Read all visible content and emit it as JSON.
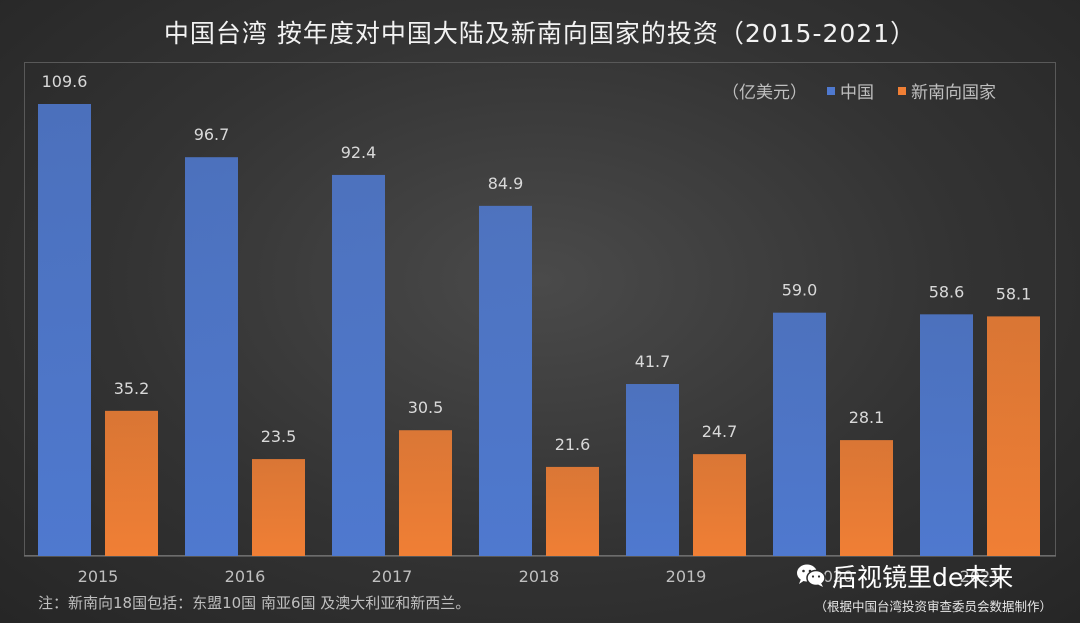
{
  "title": "中国台湾 按年度对中国大陆及新南向国家的投资（2015-2021）",
  "legend": {
    "unit": "（亿美元）",
    "china_label": "中国",
    "nsp_label": "新南向国家"
  },
  "colors": {
    "china": "#4f79cf",
    "nsp": "#f07f35",
    "label": "#d9d9d9",
    "axis": "#bfbfbf"
  },
  "note": "注：新南向18国包括：东盟10国 南亚6国 及澳大利亚和新西兰。",
  "source": "（根据中国台湾投资审查委员会数据制作）",
  "watermark": {
    "text": "后视镜里de未来",
    "icon": "wechat-icon"
  },
  "chart_data": {
    "type": "bar",
    "categories": [
      "2015",
      "2016",
      "2017",
      "2018",
      "2019",
      "2020",
      "2021"
    ],
    "series": [
      {
        "name": "中国",
        "values": [
          109.6,
          96.7,
          92.4,
          84.9,
          41.7,
          59.0,
          58.6
        ]
      },
      {
        "name": "新南向国家",
        "values": [
          35.2,
          23.5,
          30.5,
          21.6,
          24.7,
          28.1,
          58.1
        ]
      }
    ],
    "title": "中国台湾 按年度对中国大陆及新南向国家的投资（2015-2021）",
    "ylabel": "（亿美元）",
    "ylim": [
      0,
      109.6
    ],
    "grid": false,
    "legend_position": "top-right"
  }
}
